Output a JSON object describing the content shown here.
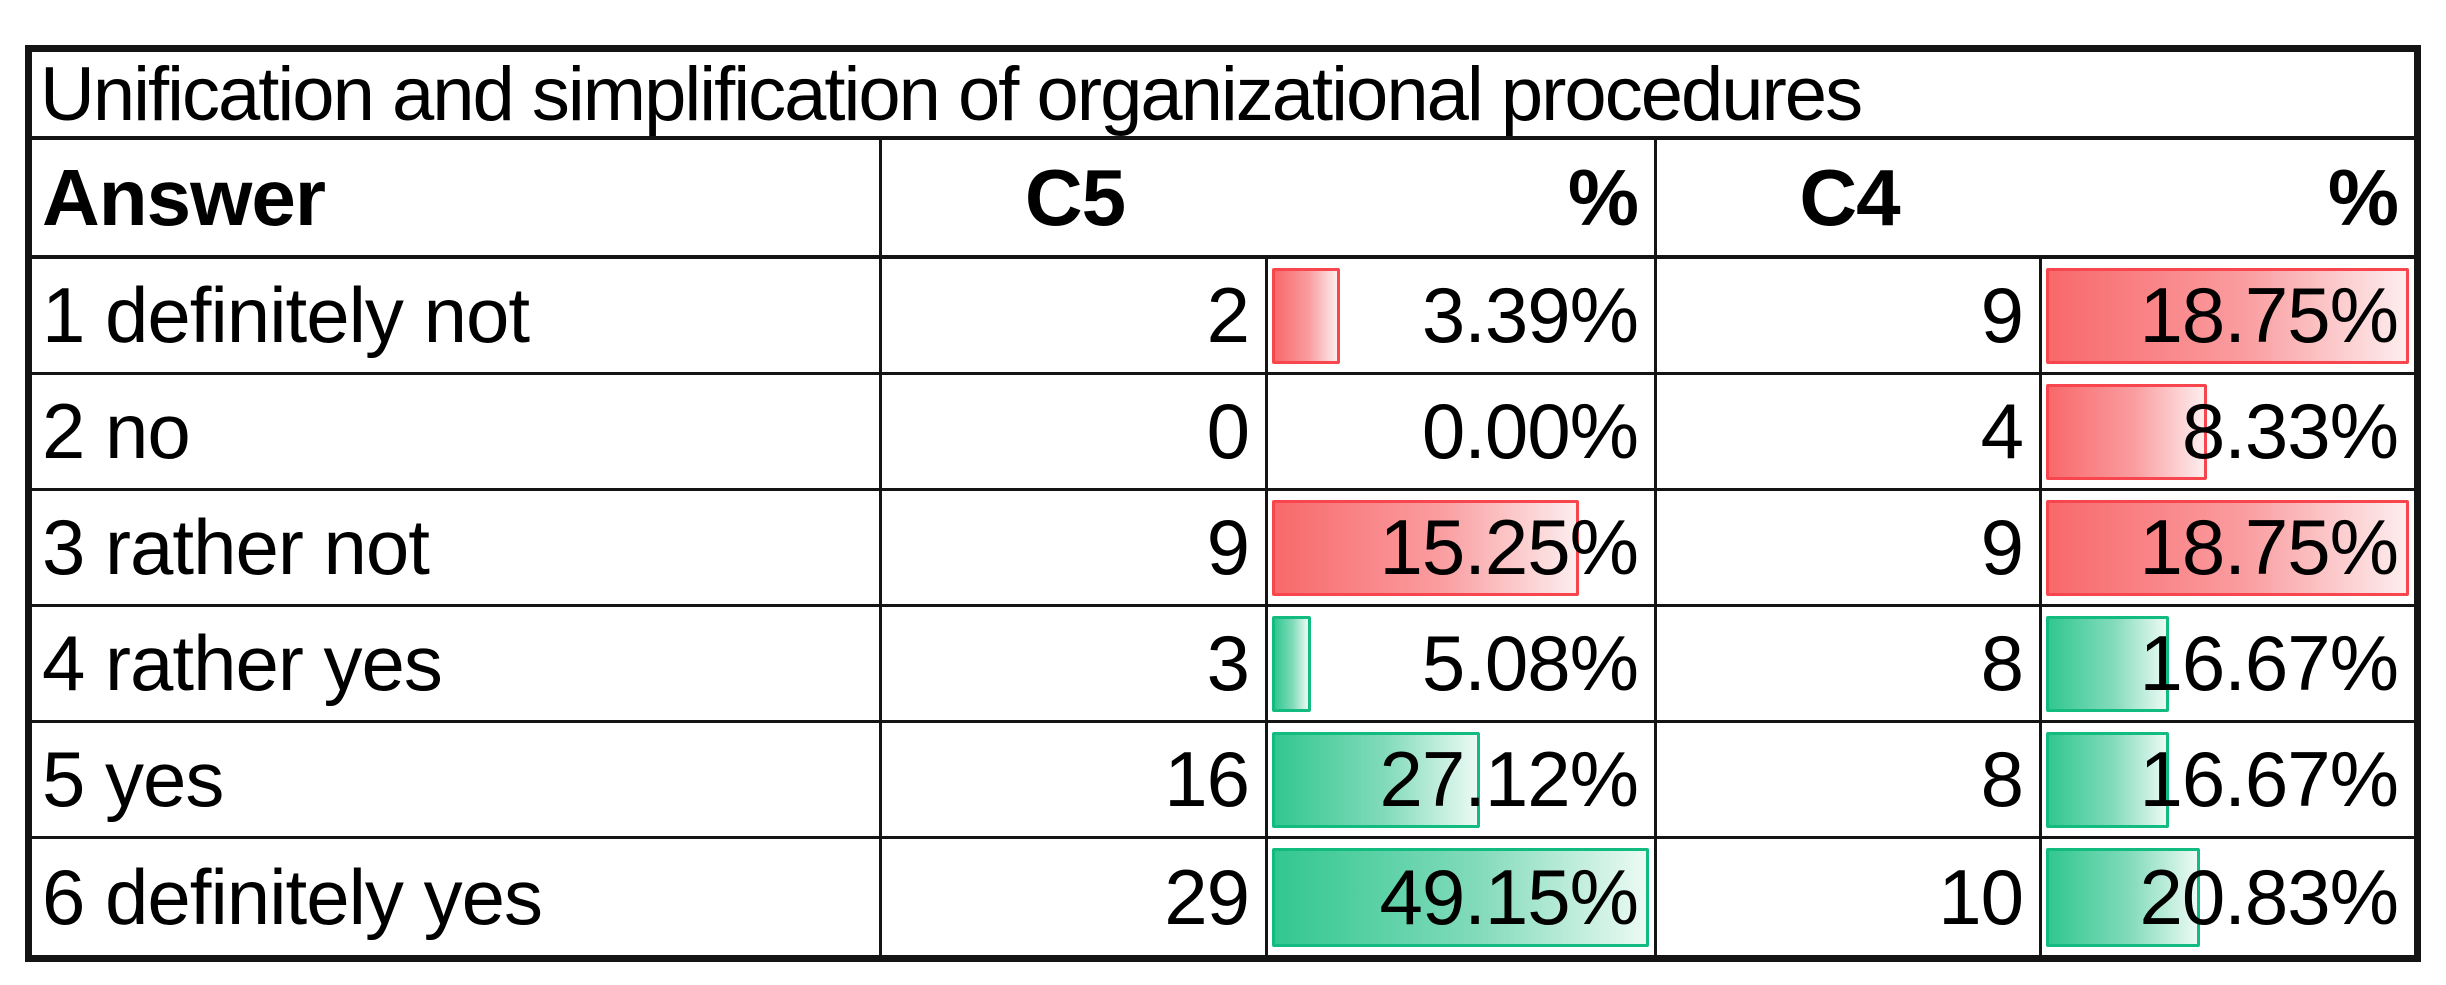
{
  "title": "Unification and simplification of organizational procedures",
  "header": {
    "answer": "Answer",
    "c5": "C5",
    "c5_pct": "%",
    "c4": "C4",
    "c4_pct": "%"
  },
  "bar_scale": {
    "negative_max_pct": 18.75,
    "positive_max_pct": 49.15
  },
  "colors": {
    "negative_bar_border": "#f8464f",
    "negative_bar_fill": "#f8696b",
    "positive_bar_border": "#12bc80",
    "positive_bar_fill": "#32c791",
    "grid_border": "#141414",
    "background": "#ffffff",
    "text": "#000000"
  },
  "rows": [
    {
      "answer": "1 definitely not",
      "c5_count": "2",
      "c5_pct": "3.39%",
      "c5_value": 3.39,
      "c4_count": "9",
      "c4_pct": "18.75%",
      "c4_value": 18.75,
      "sentiment": "negative"
    },
    {
      "answer": "2 no",
      "c5_count": "0",
      "c5_pct": "0.00%",
      "c5_value": 0,
      "c4_count": "4",
      "c4_pct": "8.33%",
      "c4_value": 8.33,
      "sentiment": "negative"
    },
    {
      "answer": "3 rather not",
      "c5_count": "9",
      "c5_pct": "15.25%",
      "c5_value": 15.25,
      "c4_count": "9",
      "c4_pct": "18.75%",
      "c4_value": 18.75,
      "sentiment": "negative"
    },
    {
      "answer": "4 rather yes",
      "c5_count": "3",
      "c5_pct": "5.08%",
      "c5_value": 5.08,
      "c4_count": "8",
      "c4_pct": "16.67%",
      "c4_value": 16.67,
      "sentiment": "positive"
    },
    {
      "answer": "5 yes",
      "c5_count": "16",
      "c5_pct": "27.12%",
      "c5_value": 27.12,
      "c4_count": "8",
      "c4_pct": "16.67%",
      "c4_value": 16.67,
      "sentiment": "positive"
    },
    {
      "answer": "6 definitely yes",
      "c5_count": "29",
      "c5_pct": "49.15%",
      "c5_value": 49.15,
      "c4_count": "10",
      "c4_pct": "20.83%",
      "c4_value": 20.83,
      "sentiment": "positive"
    }
  ],
  "chart_data": {
    "type": "table",
    "title": "Unification and simplification of organizational procedures",
    "columns": [
      "Answer",
      "C5",
      "%",
      "C4",
      "%"
    ],
    "rows": [
      [
        "1 definitely not",
        2,
        "3.39%",
        9,
        "18.75%"
      ],
      [
        "2 no",
        0,
        "0.00%",
        4,
        "8.33%"
      ],
      [
        "3 rather not",
        9,
        "15.25%",
        9,
        "18.75%"
      ],
      [
        "4 rather yes",
        3,
        "5.08%",
        8,
        "16.67%"
      ],
      [
        "5 yes",
        16,
        "27.12%",
        8,
        "16.67%"
      ],
      [
        "6 definitely yes",
        29,
        "49.15%",
        10,
        "20.83%"
      ]
    ],
    "databars": {
      "negative_rows_indices": [
        0,
        1,
        2
      ],
      "positive_rows_indices": [
        3,
        4,
        5
      ],
      "negative_color": "red-gradient",
      "positive_color": "green-gradient",
      "bar_length_scale": {
        "negative_full_width_at_pct": 18.75,
        "positive_full_width_at_pct": 49.15
      }
    },
    "layout": {
      "grid": true,
      "legend": false,
      "percent_columns_have_databars": true
    }
  }
}
